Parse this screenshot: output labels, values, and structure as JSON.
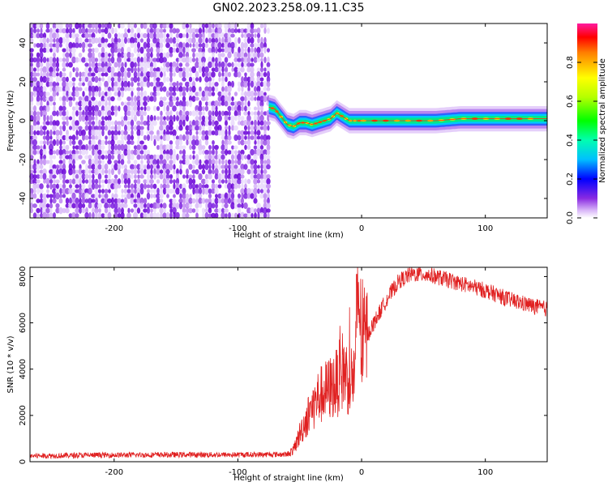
{
  "title": "GN02.2023.258.09.11.C35",
  "chart_data": [
    {
      "type": "heatmap",
      "id": "spectrogram",
      "xlabel": "Height of straight line (km)",
      "ylabel": "Frequency (Hz)",
      "xlim": [
        -268,
        150
      ],
      "ylim": [
        -50,
        50
      ],
      "xticks": [
        -200,
        -100,
        0,
        100
      ],
      "yticks": [
        -40,
        -20,
        0,
        20,
        40
      ],
      "grid": false,
      "noise_region_x": [
        -268,
        -75
      ],
      "trace": {
        "x": [
          -75,
          -70,
          -65,
          -60,
          -55,
          -50,
          -45,
          -40,
          -35,
          -30,
          -25,
          -20,
          -15,
          -10,
          -5,
          0,
          20,
          40,
          60,
          80,
          90,
          100,
          120,
          150
        ],
        "y": [
          7,
          6,
          2,
          -2,
          -3,
          -1,
          -1,
          -2,
          -1,
          0,
          1,
          4,
          2,
          0,
          0,
          0,
          0,
          0,
          0,
          1,
          1,
          1,
          1,
          1
        ]
      },
      "colorbar": {
        "label": "Normalized spectral amplitude",
        "range": [
          0,
          1
        ],
        "ticks": [
          "0.0",
          "0.2",
          "0.4",
          "0.6",
          "0.8"
        ]
      }
    },
    {
      "type": "line",
      "id": "snr",
      "xlabel": "Height of straight line (km)",
      "ylabel": "SNR (10 * v/v)",
      "xlim": [
        -268,
        150
      ],
      "ylim": [
        0,
        8400
      ],
      "xticks": [
        -200,
        -100,
        0,
        100
      ],
      "yticks": [
        0,
        2000,
        4000,
        6000,
        8000
      ],
      "grid": false,
      "series": [
        {
          "color": "#e02020",
          "x": [
            -268,
            -220,
            -160,
            -100,
            -60,
            -55,
            -50,
            -45,
            -40,
            -35,
            -30,
            -25,
            -20,
            -15,
            -10,
            -5,
            -3,
            0,
            10,
            20,
            30,
            40,
            50,
            60,
            80,
            100,
            120,
            140,
            150
          ],
          "y": [
            250,
            280,
            300,
            300,
            320,
            500,
            1200,
            1800,
            2300,
            2800,
            3000,
            3200,
            3400,
            4000,
            3500,
            3800,
            7900,
            5000,
            6000,
            7000,
            7800,
            8100,
            8100,
            8000,
            7700,
            7400,
            7000,
            6700,
            6600
          ]
        }
      ]
    }
  ]
}
